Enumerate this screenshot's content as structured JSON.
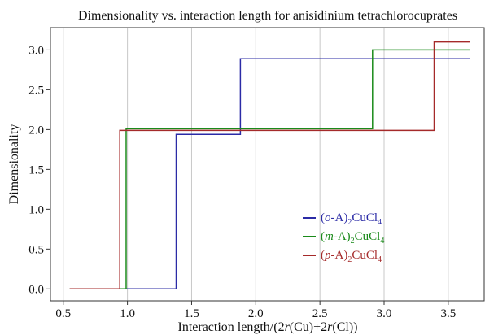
{
  "chart_data": {
    "type": "line",
    "step": true,
    "title": "Dimensionality vs. interaction length for anisidinium tetrachlorocuprates",
    "xlabel": {
      "prefix": "Interaction length/(2",
      "r1": "r",
      "mid": "(Cu)+2",
      "r2": "r",
      "suffix": "(Cl))"
    },
    "ylabel": "Dimensionality",
    "xlim": [
      0.4,
      3.78
    ],
    "ylim": [
      -0.15,
      3.28
    ],
    "xticks": [
      0.5,
      1.0,
      1.5,
      2.0,
      2.5,
      3.0,
      3.5
    ],
    "xtick_labels": [
      "0.5",
      "1.0",
      "1.5",
      "2.0",
      "2.5",
      "3.0",
      "3.5"
    ],
    "yticks": [
      0.0,
      0.5,
      1.0,
      1.5,
      2.0,
      2.5,
      3.0
    ],
    "ytick_labels": [
      "0.0",
      "0.5",
      "1.0",
      "1.5",
      "2.0",
      "2.5",
      "3.0"
    ],
    "grid": "vertical",
    "legend_position": "lower-right",
    "series": [
      {
        "name": {
          "pre": "(",
          "it": "o",
          "post": "-A)",
          "s1": "2",
          "mid": "CuCl",
          "s2": "4"
        },
        "color": "#2b2ba6",
        "x": [
          0.55,
          1.38,
          1.38,
          1.88,
          1.88,
          3.67
        ],
        "y": [
          0.0,
          0.0,
          1.94,
          1.94,
          2.89,
          2.89
        ]
      },
      {
        "name": {
          "pre": "(",
          "it": "m",
          "post": "-A)",
          "s1": "2",
          "mid": "CuCl",
          "s2": "4"
        },
        "color": "#1a8a1a",
        "x": [
          0.55,
          0.99,
          0.99,
          2.91,
          2.91,
          3.67
        ],
        "y": [
          0.0,
          0.0,
          2.01,
          2.01,
          3.0,
          3.0
        ]
      },
      {
        "name": {
          "pre": "(",
          "it": "p",
          "post": "-A)",
          "s1": "2",
          "mid": "CuCl",
          "s2": "4"
        },
        "color": "#a52a2a",
        "x": [
          0.55,
          0.94,
          0.94,
          3.39,
          3.39,
          3.67
        ],
        "y": [
          0.0,
          0.0,
          1.99,
          1.99,
          3.1,
          3.1
        ]
      }
    ]
  }
}
